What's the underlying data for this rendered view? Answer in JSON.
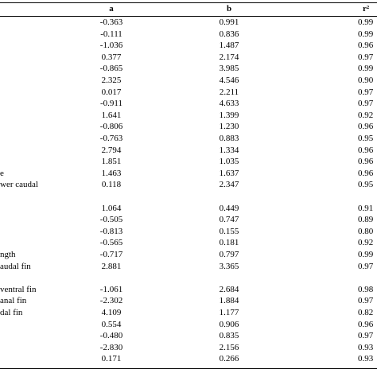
{
  "header": {
    "col_a": "a",
    "col_b": "b",
    "col_r": "r²"
  },
  "rows": [
    {
      "label": "",
      "a": "-0.363",
      "b": "0.991",
      "r": "0.99"
    },
    {
      "label": "",
      "a": "-0.111",
      "b": "0.836",
      "r": "0.99"
    },
    {
      "label": "",
      "a": "-1.036",
      "b": "1.487",
      "r": "0.96"
    },
    {
      "label": "",
      "a": "0.377",
      "b": "2.174",
      "r": "0.97"
    },
    {
      "label": "",
      "a": "-0.865",
      "b": "3.985",
      "r": "0.99"
    },
    {
      "label": "",
      "a": "2.325",
      "b": "4.546",
      "r": "0.90"
    },
    {
      "label": "",
      "a": "0.017",
      "b": "2.211",
      "r": "0.97"
    },
    {
      "label": "",
      "a": "-0.911",
      "b": "4.633",
      "r": "0.97"
    },
    {
      "label": "",
      "a": "1.641",
      "b": "1.399",
      "r": "0.92"
    },
    {
      "label": "",
      "a": "-0.806",
      "b": "1.230",
      "r": "0.96"
    },
    {
      "label": "",
      "a": "-0.763",
      "b": "0.883",
      "r": "0.95"
    },
    {
      "label": "",
      "a": "2.794",
      "b": "1.334",
      "r": "0.96"
    },
    {
      "label": "",
      "a": "1.851",
      "b": "1.035",
      "b2": "",
      "r": "0.96"
    },
    {
      "label": "e",
      "a": "1.463",
      "b": "1.637",
      "r": "0.96"
    },
    {
      "label": "wer caudal",
      "a": "0.118",
      "b": "2.347",
      "r": "0.95"
    },
    {
      "label": "",
      "a": "",
      "b": "",
      "r": ""
    },
    {
      "label": "",
      "a": "1.064",
      "b": "0.449",
      "r": "0.91"
    },
    {
      "label": "",
      "a": "-0.505",
      "b": "0.747",
      "r": "0.89"
    },
    {
      "label": "",
      "a": "-0.813",
      "b": "0.155",
      "r": "0.80"
    },
    {
      "label": "",
      "a": "-0.565",
      "b": "0.181",
      "r": "0.92"
    },
    {
      "label": "ngth",
      "a": "-0.717",
      "b": "0.797",
      "r": "0.99"
    },
    {
      "label": "audal fin",
      "a": "2.881",
      "b": "3.365",
      "r": "0.97"
    },
    {
      "label": "",
      "a": "",
      "b": "",
      "r": ""
    },
    {
      "label": " ventral fin",
      "a": "-1.061",
      "b": "2.684",
      "r": "0.98"
    },
    {
      "label": "anal fin",
      "a": "-2.302",
      "b": "1.884",
      "r": "0.97"
    },
    {
      "label": "dal fin",
      "a": "4.109",
      "b": "1.177",
      "r": "0.82"
    },
    {
      "label": "",
      "a": "0.554",
      "b": "0.906",
      "r": "0.96"
    },
    {
      "label": "",
      "a": "-0.480",
      "b": "0.835",
      "r": "0.97"
    },
    {
      "label": "",
      "a": "-2.830",
      "b": "2.156",
      "r": "0.93"
    },
    {
      "label": "",
      "a": "0.171",
      "b": "0.266",
      "r": "0.93"
    }
  ]
}
